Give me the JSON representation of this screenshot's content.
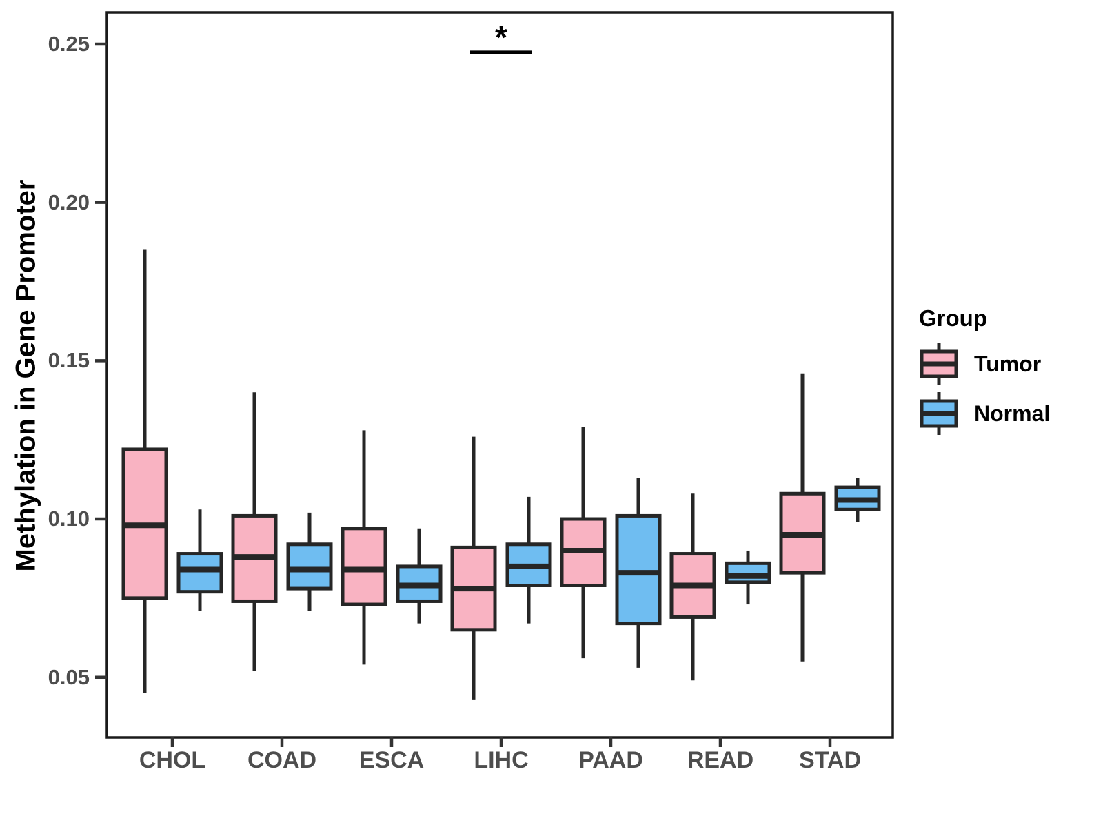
{
  "chart_data": {
    "type": "boxplot",
    "ylabel": "Methylation in Gene Promoter",
    "xlabel": "",
    "categories": [
      "CHOL",
      "COAD",
      "ESCA",
      "LIHC",
      "PAAD",
      "READ",
      "STAD"
    ],
    "groups": [
      {
        "name": "Tumor",
        "color": "#F9B3C2"
      },
      {
        "name": "Normal",
        "color": "#6FBDF1"
      }
    ],
    "ylim": [
      0.031,
      0.26
    ],
    "yticks": [
      0.25,
      0.2,
      0.15,
      0.1,
      0.05
    ],
    "ytick_labels": [
      "0.25",
      "0.20",
      "0.15",
      "0.10",
      "0.05"
    ],
    "grid": false,
    "legend_position": "right",
    "series": [
      {
        "category": "CHOL",
        "group": "Tumor",
        "whisker_low": 0.045,
        "q1": 0.075,
        "median": 0.098,
        "q3": 0.122,
        "whisker_high": 0.185
      },
      {
        "category": "CHOL",
        "group": "Normal",
        "whisker_low": 0.071,
        "q1": 0.077,
        "median": 0.084,
        "q3": 0.089,
        "whisker_high": 0.103
      },
      {
        "category": "COAD",
        "group": "Tumor",
        "whisker_low": 0.052,
        "q1": 0.074,
        "median": 0.088,
        "q3": 0.101,
        "whisker_high": 0.14
      },
      {
        "category": "COAD",
        "group": "Normal",
        "whisker_low": 0.071,
        "q1": 0.078,
        "median": 0.084,
        "q3": 0.092,
        "whisker_high": 0.102
      },
      {
        "category": "ESCA",
        "group": "Tumor",
        "whisker_low": 0.054,
        "q1": 0.073,
        "median": 0.084,
        "q3": 0.097,
        "whisker_high": 0.128
      },
      {
        "category": "ESCA",
        "group": "Normal",
        "whisker_low": 0.067,
        "q1": 0.074,
        "median": 0.079,
        "q3": 0.085,
        "whisker_high": 0.097
      },
      {
        "category": "LIHC",
        "group": "Tumor",
        "whisker_low": 0.043,
        "q1": 0.065,
        "median": 0.078,
        "q3": 0.091,
        "whisker_high": 0.126
      },
      {
        "category": "LIHC",
        "group": "Normal",
        "whisker_low": 0.067,
        "q1": 0.079,
        "median": 0.085,
        "q3": 0.092,
        "whisker_high": 0.107
      },
      {
        "category": "PAAD",
        "group": "Tumor",
        "whisker_low": 0.056,
        "q1": 0.079,
        "median": 0.09,
        "q3": 0.1,
        "whisker_high": 0.129
      },
      {
        "category": "PAAD",
        "group": "Normal",
        "whisker_low": 0.053,
        "q1": 0.067,
        "median": 0.083,
        "q3": 0.101,
        "whisker_high": 0.113
      },
      {
        "category": "READ",
        "group": "Tumor",
        "whisker_low": 0.049,
        "q1": 0.069,
        "median": 0.079,
        "q3": 0.089,
        "whisker_high": 0.108
      },
      {
        "category": "READ",
        "group": "Normal",
        "whisker_low": 0.073,
        "q1": 0.08,
        "median": 0.082,
        "q3": 0.086,
        "whisker_high": 0.09
      },
      {
        "category": "STAD",
        "group": "Tumor",
        "whisker_low": 0.055,
        "q1": 0.083,
        "median": 0.095,
        "q3": 0.108,
        "whisker_high": 0.146
      },
      {
        "category": "STAD",
        "group": "Normal",
        "whisker_low": 0.099,
        "q1": 0.103,
        "median": 0.106,
        "q3": 0.11,
        "whisker_high": 0.113
      }
    ],
    "annotation": {
      "label": "*",
      "category": "LIHC",
      "bar_y": 0.2474
    }
  },
  "legend": {
    "title": "Group"
  }
}
